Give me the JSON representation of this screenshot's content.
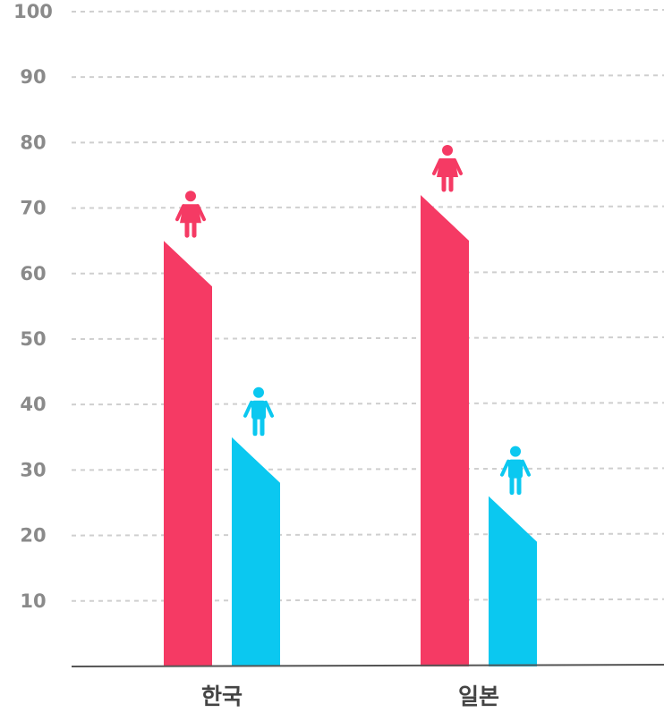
{
  "chart_data": {
    "type": "bar",
    "title": "",
    "xlabel": "",
    "ylabel": "",
    "categories": [
      "한국",
      "일본"
    ],
    "series": [
      {
        "icon": "female-person-icon",
        "color": "#f53a64",
        "values": [
          65,
          72
        ]
      },
      {
        "icon": "male-person-icon",
        "color": "#0bc8f0",
        "values": [
          35,
          26
        ]
      }
    ],
    "ylim": [
      0,
      100
    ],
    "yticks": [
      "10",
      "20",
      "30",
      "40",
      "50",
      "60",
      "70",
      "80",
      "90",
      "100"
    ],
    "grid": true,
    "legend": "none"
  }
}
